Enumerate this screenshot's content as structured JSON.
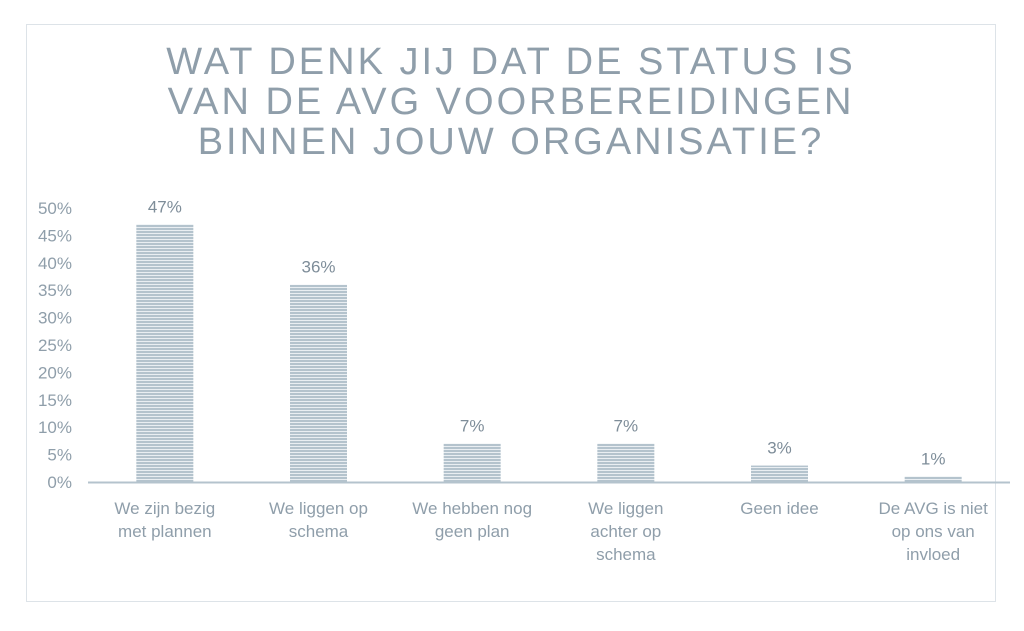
{
  "chart_data": {
    "type": "bar",
    "title_lines": [
      "WAT DENK JIJ DAT DE STATUS IS",
      "VAN DE AVG VOORBEREIDINGEN",
      "BINNEN JOUW ORGANISATIE?"
    ],
    "categories": [
      [
        "We zijn bezig",
        "met plannen"
      ],
      [
        "We liggen op",
        "schema"
      ],
      [
        "We hebben nog",
        "geen plan"
      ],
      [
        "We liggen",
        "achter op",
        "schema"
      ],
      [
        "Geen idee"
      ],
      [
        "De AVG is niet",
        "op ons van",
        "invloed"
      ]
    ],
    "values": [
      47,
      36,
      7,
      7,
      3,
      1
    ],
    "data_labels": [
      "47%",
      "36%",
      "7%",
      "7%",
      "3%",
      "1%"
    ],
    "ylim": [
      0,
      50
    ],
    "yticks": [
      {
        "value": 0,
        "label": "0%"
      },
      {
        "value": 5,
        "label": "5%"
      },
      {
        "value": 10,
        "label": "10%"
      },
      {
        "value": 15,
        "label": "15%"
      },
      {
        "value": 20,
        "label": "20%"
      },
      {
        "value": 25,
        "label": "25%"
      },
      {
        "value": 30,
        "label": "30%"
      },
      {
        "value": 35,
        "label": "35%"
      },
      {
        "value": 40,
        "label": "40%"
      },
      {
        "value": 45,
        "label": "45%"
      },
      {
        "value": 50,
        "label": "50%"
      }
    ],
    "grid": false,
    "legend": "none",
    "bar_color": "#b4c3cd",
    "bar_stripe_color": "#eef2f5",
    "axis_color": "#b4c3cd",
    "text_color": "#8f9eaa"
  }
}
